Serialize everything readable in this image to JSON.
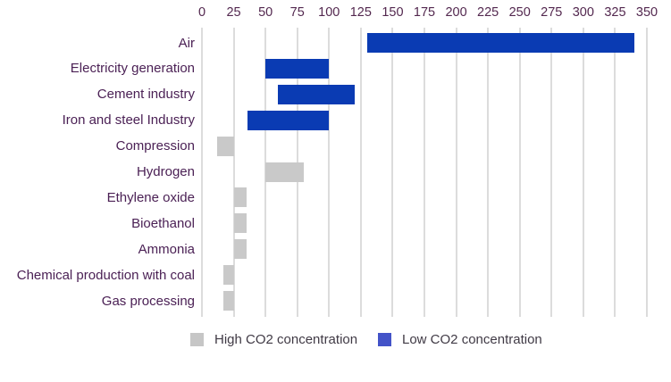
{
  "chart_data": {
    "type": "bar",
    "orientation": "horizontal-range",
    "title": "",
    "xlabel": "",
    "ylabel": "",
    "grid": "vertical",
    "x_axis": {
      "position": "top",
      "min": 0,
      "max": 350,
      "tick_step": 25,
      "ticks": [
        0,
        25,
        50,
        75,
        100,
        125,
        150,
        175,
        200,
        225,
        250,
        275,
        300,
        325,
        350
      ]
    },
    "categories": [
      "Air",
      "Electricity generation",
      "Cement industry",
      "Iron and steel Industry",
      "Compression",
      "Hydrogen",
      "Ethylene oxide",
      "Bioethanol",
      "Ammonia",
      "Chemical production with coal",
      "Gas processing"
    ],
    "bars": [
      {
        "category": "Air",
        "range": [
          130,
          340
        ],
        "concentration": "low"
      },
      {
        "category": "Electricity generation",
        "range": [
          50,
          100
        ],
        "concentration": "low"
      },
      {
        "category": "Cement industry",
        "range": [
          60,
          120
        ],
        "concentration": "low"
      },
      {
        "category": "Iron and steel Industry",
        "range": [
          36,
          100
        ],
        "concentration": "low"
      },
      {
        "category": "Compression",
        "range": [
          12,
          25
        ],
        "concentration": "high"
      },
      {
        "category": "Hydrogen",
        "range": [
          50,
          80
        ],
        "concentration": "high"
      },
      {
        "category": "Ethylene oxide",
        "range": [
          25,
          35
        ],
        "concentration": "high"
      },
      {
        "category": "Bioethanol",
        "range": [
          25,
          35
        ],
        "concentration": "high"
      },
      {
        "category": "Ammonia",
        "range": [
          25,
          35
        ],
        "concentration": "high"
      },
      {
        "category": "Chemical production with coal",
        "range": [
          17,
          25
        ],
        "concentration": "high"
      },
      {
        "category": "Gas processing",
        "range": [
          17,
          25
        ],
        "concentration": "high"
      }
    ],
    "colors": {
      "high": "#c9c9c9",
      "low": "#0a3bb3",
      "gridline": "#dcdcdc",
      "tick_text": "#53284f",
      "category_text": "#4b2155"
    },
    "legend": [
      {
        "label": "High CO2 concentration",
        "color": "#c6c6c6"
      },
      {
        "label": "Low CO2 concentration",
        "color": "#4353c8"
      }
    ],
    "legend_position": "bottom"
  }
}
